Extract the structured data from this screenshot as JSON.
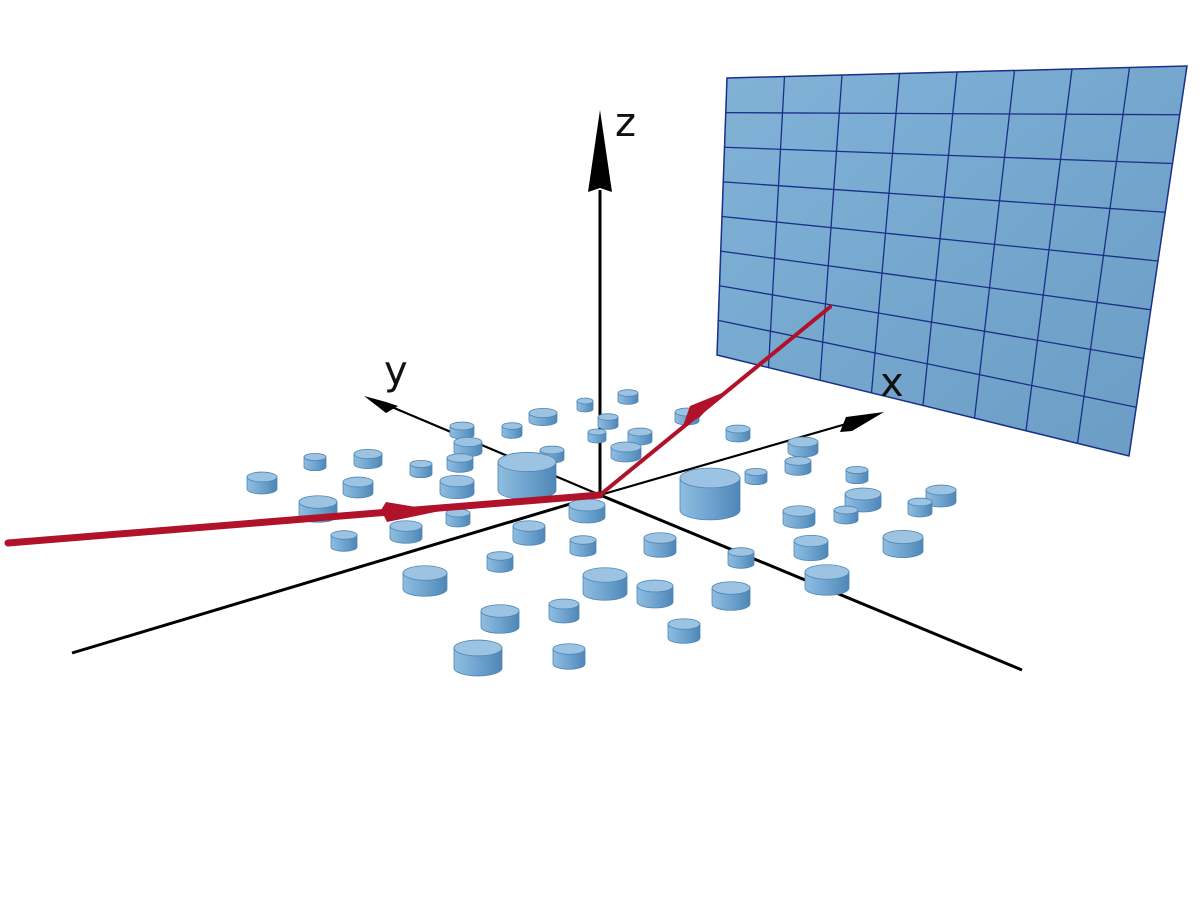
{
  "axes": {
    "x_label": "x",
    "y_label": "y",
    "z_label": "z"
  },
  "colors": {
    "background": "#ffffff",
    "axis": "#000000",
    "beam": "#b0122a",
    "cylinder_side": "#7aaed4",
    "cylinder_top": "#9cc4e2",
    "cylinder_edge": "#4f86b5",
    "detector_fill": "#7aaacf",
    "detector_grid": "#1a2f8a"
  },
  "detector": {
    "grid_columns": 8,
    "grid_rows": 8
  },
  "scatterers": {
    "description_count": 62
  }
}
